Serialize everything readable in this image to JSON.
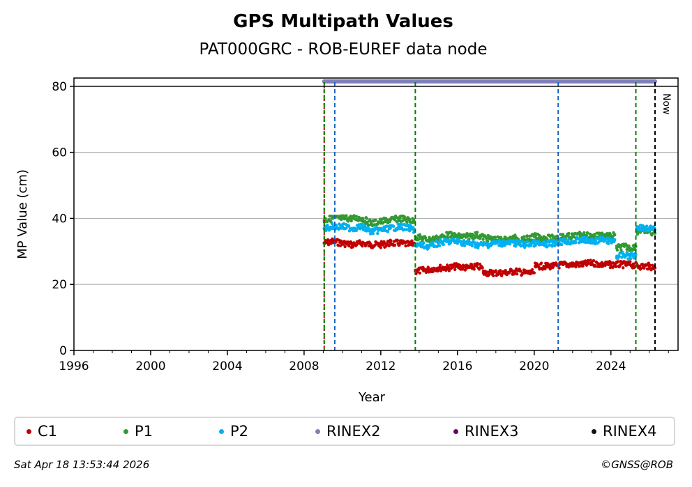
{
  "chart_data": {
    "type": "scatter",
    "title": "GPS Multipath Values",
    "subtitle": "PAT000GRC - ROB-EUREF data node",
    "xlabel": "Year",
    "ylabel": "MP Value (cm)",
    "xlim": [
      1996,
      2027.5
    ],
    "ylim": [
      0,
      82.5
    ],
    "xticks": [
      1996,
      2000,
      2004,
      2008,
      2012,
      2016,
      2020,
      2024
    ],
    "yticks": [
      0,
      20,
      40,
      60,
      80
    ],
    "grid": "horizontal",
    "now_label": "Now",
    "now_year": 2026.3,
    "series": [
      {
        "name": "C1",
        "color": "#c00000",
        "segments": [
          {
            "x": [
              2009.05,
              2009.5,
              2010.0,
              2010.5,
              2011.0,
              2011.5,
              2012.0,
              2012.5,
              2013.0,
              2013.5,
              2013.75
            ],
            "y": [
              32.5,
              33.0,
              32.5,
              32.0,
              32.5,
              32.0,
              32.0,
              32.5,
              32.5,
              32.0,
              32.5
            ]
          },
          {
            "x": [
              2013.8,
              2014.5,
              2015.0,
              2015.5,
              2016.0,
              2016.5,
              2017.0,
              2017.3
            ],
            "y": [
              24.0,
              24.5,
              25.0,
              25.0,
              25.5,
              25.0,
              25.5,
              25.0
            ]
          },
          {
            "x": [
              2017.35,
              2017.8,
              2018.5,
              2019.0,
              2019.5,
              2020.0
            ],
            "y": [
              23.5,
              23.5,
              23.5,
              24.0,
              23.5,
              23.5
            ]
          },
          {
            "x": [
              2020.05,
              2020.5,
              2021.0,
              2021.5,
              2022.0,
              2022.5,
              2023.0,
              2023.5,
              2024.0,
              2024.5,
              2025.0,
              2025.5,
              2026.0,
              2026.3
            ],
            "y": [
              25.5,
              25.5,
              25.5,
              26.0,
              26.0,
              26.0,
              26.5,
              26.0,
              26.0,
              26.0,
              26.0,
              25.5,
              25.5,
              25.0
            ]
          }
        ]
      },
      {
        "name": "P1",
        "color": "#339933",
        "segments": [
          {
            "x": [
              2009.05,
              2009.5,
              2010.0,
              2010.5,
              2011.0,
              2011.5,
              2012.0,
              2012.5,
              2013.0,
              2013.5,
              2013.75
            ],
            "y": [
              39.5,
              40.0,
              40.0,
              40.0,
              40.0,
              38.5,
              39.0,
              39.5,
              40.0,
              39.5,
              39.0
            ]
          },
          {
            "x": [
              2013.8,
              2014.5,
              2015.0,
              2015.5,
              2016.0,
              2016.5,
              2017.0,
              2017.5,
              2018.0,
              2018.5,
              2019.0,
              2019.5,
              2020.0,
              2020.5,
              2021.0,
              2021.5,
              2022.0,
              2022.5,
              2023.0,
              2023.5,
              2024.0,
              2024.2
            ],
            "y": [
              34.5,
              33.5,
              34.0,
              35.0,
              34.5,
              34.5,
              35.0,
              34.0,
              33.5,
              33.5,
              34.0,
              33.5,
              34.5,
              34.0,
              34.0,
              34.5,
              34.5,
              35.0,
              34.5,
              35.0,
              34.5,
              35.0
            ]
          },
          {
            "x": [
              2024.3,
              2024.7,
              2025.0,
              2025.3
            ],
            "y": [
              31.0,
              31.5,
              31.0,
              31.5
            ]
          },
          {
            "x": [
              2025.35,
              2025.7,
              2026.0,
              2026.3
            ],
            "y": [
              36.0,
              36.5,
              36.0,
              35.5
            ]
          }
        ]
      },
      {
        "name": "P2",
        "color": "#00b0f0",
        "segments": [
          {
            "x": [
              2009.05,
              2009.5,
              2010.0,
              2010.5,
              2011.0,
              2011.5,
              2012.0,
              2012.5,
              2013.0,
              2013.5,
              2013.75
            ],
            "y": [
              37.0,
              37.5,
              37.5,
              37.0,
              37.5,
              36.0,
              36.5,
              37.0,
              37.5,
              37.0,
              36.5
            ]
          },
          {
            "x": [
              2013.8,
              2014.5,
              2015.0,
              2015.5,
              2016.0,
              2016.5,
              2017.0,
              2017.5,
              2018.0,
              2018.5,
              2019.0,
              2019.5,
              2020.0,
              2020.5,
              2021.0,
              2021.5,
              2022.0,
              2022.5,
              2023.0,
              2023.5,
              2024.0,
              2024.2
            ],
            "y": [
              32.0,
              31.5,
              32.5,
              33.0,
              33.0,
              32.5,
              32.0,
              32.0,
              32.5,
              32.5,
              32.5,
              32.0,
              32.5,
              32.0,
              32.5,
              33.0,
              33.0,
              33.5,
              33.0,
              33.5,
              33.0,
              33.5
            ]
          },
          {
            "x": [
              2024.3,
              2024.7,
              2025.0,
              2025.3
            ],
            "y": [
              28.5,
              29.0,
              28.5,
              29.0
            ]
          },
          {
            "x": [
              2025.35,
              2025.7,
              2026.0,
              2026.3
            ],
            "y": [
              37.5,
              37.0,
              37.0,
              36.5
            ]
          }
        ]
      },
      {
        "name": "RINEX2",
        "color": "#7f7fbf",
        "segments": [
          {
            "x": [
              2009.05,
              2026.3
            ],
            "y": [
              81.5,
              81.5
            ]
          }
        ]
      },
      {
        "name": "RINEX3",
        "color": "#6b0068",
        "segments": []
      },
      {
        "name": "RINEX4",
        "color": "#1a0a1f",
        "segments": []
      }
    ],
    "event_lines": [
      {
        "x": 2009.05,
        "color": "#cc0000",
        "style": "dotted"
      },
      {
        "x": 2009.05,
        "color": "#008000",
        "style": "dashed"
      },
      {
        "x": 2009.6,
        "color": "#1565c0",
        "style": "dashed"
      },
      {
        "x": 2013.8,
        "color": "#008000",
        "style": "dashed"
      },
      {
        "x": 2021.25,
        "color": "#1565c0",
        "style": "dashed"
      },
      {
        "x": 2025.3,
        "color": "#008000",
        "style": "dashed"
      },
      {
        "x": 2026.3,
        "color": "#000000",
        "style": "dashed"
      }
    ],
    "legend": [
      "C1",
      "P1",
      "P2",
      "RINEX2",
      "RINEX3",
      "RINEX4"
    ],
    "legend_position": "bottom"
  },
  "footer": {
    "timestamp": "Sat Apr 18 13:53:44 2026",
    "copyright": "©GNSS@ROB"
  }
}
